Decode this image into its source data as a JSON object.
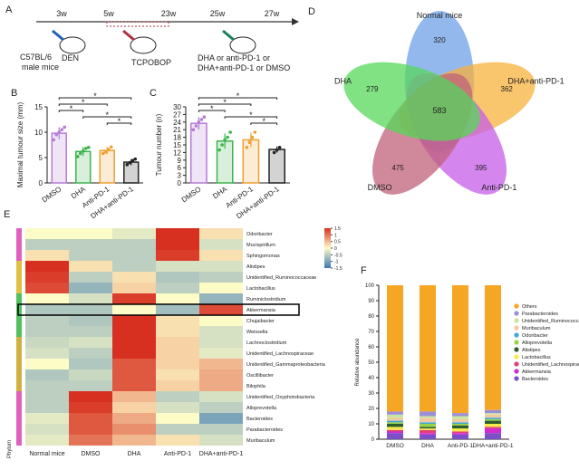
{
  "timeline": {
    "label": "A",
    "weeks": [
      "3w",
      "5w",
      "23w",
      "25w",
      "27w"
    ],
    "strain": "C57BL/6",
    "strain_sub": "male mice",
    "den": "DEN",
    "tcpobop": "TCPOBOP",
    "treatment_1": "DHA   or   anti-PD-1   or",
    "treatment_2": "DHA+anti-PD-1 or DMSO"
  },
  "chart_data": [
    {
      "type": "bar",
      "label": "B",
      "y_label": "Maximal tumour size (mm)",
      "categories": [
        "DMSO",
        "DHA",
        "Anti-PD-1",
        "DHA+anti-PD-1"
      ],
      "colors": [
        "#b57bd6",
        "#3cb44b",
        "#f0a030",
        "#222222"
      ],
      "values": [
        9.8,
        6.2,
        6.4,
        4.1
      ],
      "errors": [
        1.2,
        0.9,
        0.7,
        0.6
      ],
      "points": [
        [
          8.5,
          9.5,
          10,
          10.5,
          11
        ],
        [
          5.2,
          5.8,
          6.3,
          6.8,
          7
        ],
        [
          5.8,
          6.1,
          6.6,
          7.1
        ],
        [
          3.6,
          4,
          4.4,
          4.7
        ]
      ],
      "ylim": [
        0,
        15
      ],
      "yticks": [
        0,
        5,
        10,
        15
      ],
      "significance": [
        {
          "pair": [
            0,
            3
          ],
          "label": "*"
        },
        {
          "pair": [
            0,
            2
          ],
          "label": "*"
        },
        {
          "pair": [
            0,
            1
          ],
          "label": "*"
        },
        {
          "pair": [
            1,
            3
          ],
          "label": "*"
        },
        {
          "pair": [
            2,
            3
          ],
          "label": "*"
        }
      ]
    },
    {
      "type": "bar",
      "label": "C",
      "y_label": "Tumour number (n)",
      "categories": [
        "DMSO",
        "DHA",
        "Anti-PD-1",
        "DHA+anti-PD-1"
      ],
      "colors": [
        "#b57bd6",
        "#3cb44b",
        "#f0a030",
        "#222222"
      ],
      "values": [
        23.5,
        16.5,
        17,
        13.2
      ],
      "errors": [
        2.5,
        3,
        2.8,
        1.2
      ],
      "points": [
        [
          21,
          22.5,
          24,
          25,
          26
        ],
        [
          13,
          15,
          17,
          18,
          20
        ],
        [
          14,
          16,
          18,
          20
        ],
        [
          12,
          13,
          14
        ]
      ],
      "ylim": [
        0,
        30
      ],
      "yticks": [
        0,
        3,
        6,
        9,
        12,
        15,
        18,
        21,
        24,
        27,
        30
      ],
      "significance": [
        {
          "pair": [
            0,
            3
          ],
          "label": "*"
        },
        {
          "pair": [
            0,
            2
          ],
          "label": "*"
        },
        {
          "pair": [
            0,
            1
          ],
          "label": "*"
        },
        {
          "pair": [
            1,
            3
          ],
          "label": "*"
        },
        {
          "pair": [
            2,
            3
          ],
          "label": "*"
        }
      ]
    },
    {
      "type": "venn",
      "label": "D",
      "sets": [
        {
          "name": "Normal mice",
          "color": "#6fa0e8",
          "unique": 320
        },
        {
          "name": "DHA+anti-PD-1",
          "color": "#f7b13c",
          "unique": 362
        },
        {
          "name": "Anti-PD-1",
          "color": "#c65ee8",
          "unique": 395
        },
        {
          "name": "DMSO",
          "color": "#c0607a",
          "unique": 475
        },
        {
          "name": "DHA",
          "color": "#55d85a",
          "unique": 279
        }
      ],
      "shared_all": 583
    },
    {
      "type": "heatmap",
      "label": "E",
      "phylum_label": "Phylum",
      "columns": [
        "Normal mice",
        "DMSO",
        "DHA",
        "Anti-PD-1",
        "DHA+anti-PD-1"
      ],
      "rows": [
        "Odoribacter",
        "Mucispirillum",
        "Sphingomonas",
        "Alistipes",
        "Unidentified_Ruminococcaceae",
        "Lactobacillus",
        "Ruminiclostridium",
        "Akkermansia",
        "Chujaibacter",
        "Weissella",
        "Lachnoclostridium",
        "Unidentified_Lachnospiraceae",
        "Unidentified_Gammaproteobacteria",
        "Oscillibacter",
        "Bilophila",
        "Unidentified_Oxyphotobacteria",
        "Alloprevotella",
        "Bacteroides",
        "Parabacteroides",
        "Muribaculum"
      ],
      "values": [
        [
          0,
          0,
          -0.2,
          1.5,
          0.2
        ],
        [
          -0.5,
          -0.5,
          -0.5,
          1.5,
          -0.3
        ],
        [
          0.2,
          -0.5,
          -0.5,
          1.4,
          0.2
        ],
        [
          1.5,
          0.2,
          -0.5,
          -0.3,
          -0.3
        ],
        [
          1.4,
          -0.5,
          0.2,
          -0.6,
          -0.5
        ],
        [
          1.3,
          -0.8,
          0.3,
          -0.5,
          0
        ],
        [
          0,
          -0.3,
          1.4,
          0,
          -0.8
        ],
        [
          -0.6,
          -0.6,
          0,
          -0.7,
          1.3
        ],
        [
          -0.5,
          -0.6,
          1.5,
          0.2,
          0
        ],
        [
          -0.5,
          -0.5,
          1.5,
          0.2,
          -0.3
        ],
        [
          -0.4,
          -0.3,
          1.5,
          0.3,
          -0.3
        ],
        [
          -0.3,
          -0.5,
          1.5,
          0.3,
          -0.2
        ],
        [
          0,
          -0.6,
          1.2,
          0.3,
          0.5
        ],
        [
          -0.6,
          -0.4,
          1.2,
          0.2,
          0.6
        ],
        [
          -0.5,
          -0.5,
          1.2,
          0.3,
          0.6
        ],
        [
          -0.5,
          1.5,
          0.5,
          -0.5,
          -0.3
        ],
        [
          -0.5,
          1.4,
          0.3,
          -0.3,
          -0.5
        ],
        [
          -0.2,
          1.2,
          0.6,
          0,
          -1
        ],
        [
          -0.3,
          1.2,
          0.8,
          -0.5,
          -0.5
        ],
        [
          -0.2,
          1,
          0.5,
          0.2,
          -0.3
        ]
      ],
      "highlight_row": 7,
      "colormap": [
        "#3a78b5",
        "#fdfbc6",
        "#d83020"
      ],
      "clim": [
        -1.5,
        1.5
      ],
      "cticks": [
        1.5,
        1,
        0.5,
        0,
        -0.5,
        -1,
        -1.5
      ]
    },
    {
      "type": "stacked_bar",
      "label": "F",
      "y_label": "Relative abundance",
      "categories": [
        "DMSO",
        "DHA",
        "Anti-PD-1",
        "DHA+anti-PD-1"
      ],
      "ylim": [
        0,
        100
      ],
      "yticks": [
        0,
        10,
        20,
        30,
        40,
        50,
        60,
        70,
        80,
        90,
        100
      ],
      "series": [
        {
          "name": "Others",
          "color": "#f5a623",
          "values": [
            82,
            82,
            83,
            81
          ]
        },
        {
          "name": "Parabacteroides",
          "color": "#9b8fd6",
          "values": [
            2,
            3,
            2,
            2
          ]
        },
        {
          "name": "Unidentified_Ruminococcaceae",
          "color": "#c8e6a0",
          "values": [
            2,
            1,
            2,
            1
          ]
        },
        {
          "name": "Muribaculum",
          "color": "#f2c9a0",
          "values": [
            2,
            3,
            2,
            2
          ]
        },
        {
          "name": "Odoribacter",
          "color": "#3fa9d6",
          "values": [
            1,
            1,
            1,
            1
          ]
        },
        {
          "name": "Alloprevotella",
          "color": "#9ad14b",
          "values": [
            1,
            2,
            1,
            1
          ]
        },
        {
          "name": "Alistipes",
          "color": "#2e5e2e",
          "values": [
            2,
            1,
            2,
            2
          ]
        },
        {
          "name": "Lactobacillus",
          "color": "#f7e94a",
          "values": [
            2,
            1,
            2,
            2
          ]
        },
        {
          "name": "Unidentified_Lachnospiraceae",
          "color": "#e0407a",
          "values": [
            1,
            2,
            1,
            1
          ]
        },
        {
          "name": "Akkermansia",
          "color": "#d02ad0",
          "values": [
            1,
            1,
            1,
            3
          ]
        },
        {
          "name": "Bacteroides",
          "color": "#7a4fc8",
          "values": [
            4,
            3,
            3,
            4
          ]
        }
      ]
    }
  ]
}
